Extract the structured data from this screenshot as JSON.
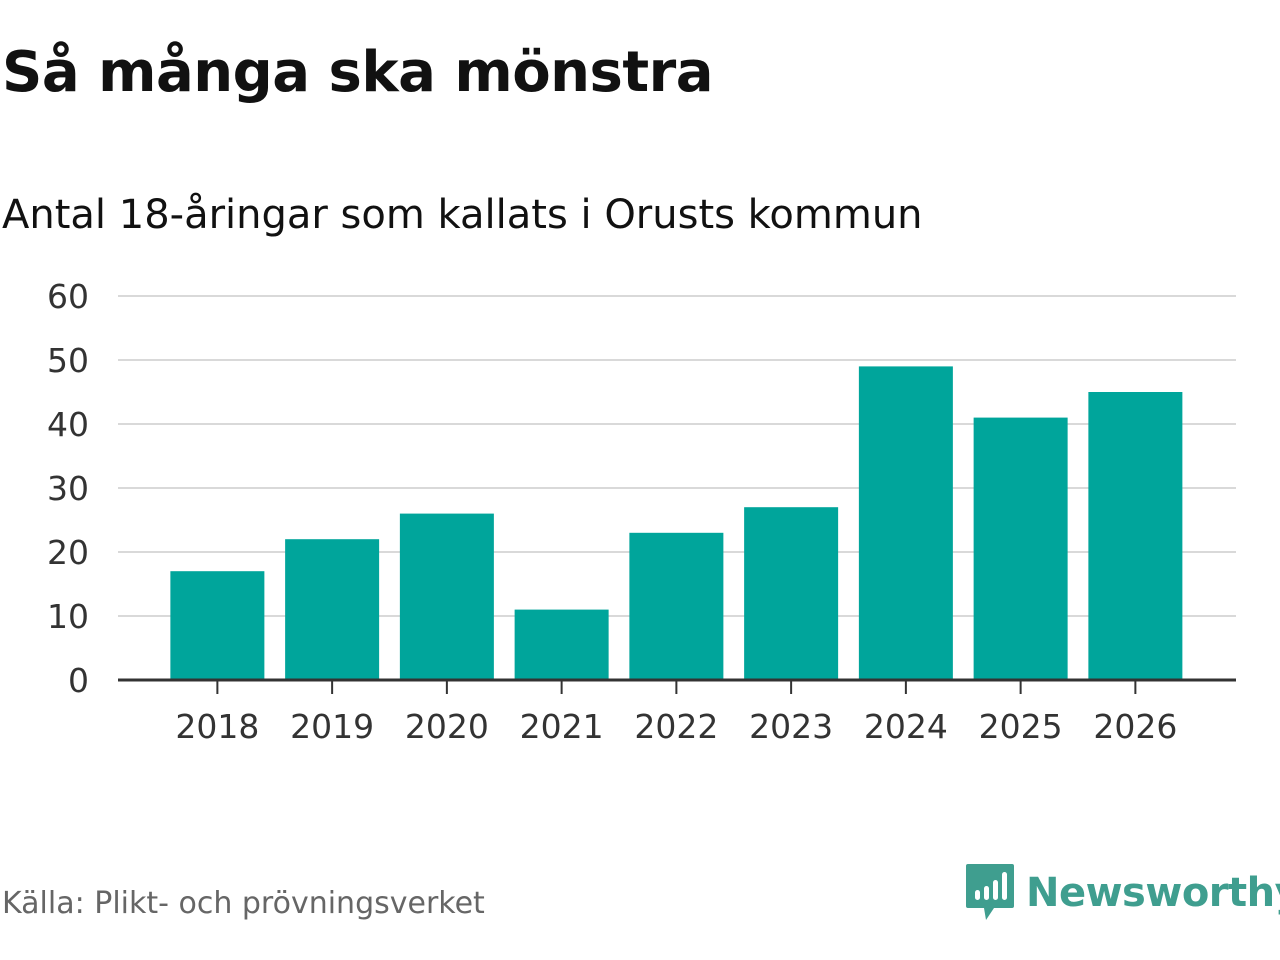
{
  "header": {
    "title": "Så många ska mönstra",
    "subtitle": "Antal 18-åringar som kallats i Orusts kommun"
  },
  "footer": {
    "source": "Källa: Plikt- och prövningsverket",
    "brand": "Newsworthy"
  },
  "colors": {
    "bar": "#00a59b",
    "grid": "#d9d9d9",
    "axis": "#333333",
    "brand": "#3f9e8f"
  },
  "chart_data": {
    "type": "bar",
    "categories": [
      "2018",
      "2019",
      "2020",
      "2021",
      "2022",
      "2023",
      "2024",
      "2025",
      "2026"
    ],
    "values": [
      17,
      22,
      26,
      11,
      23,
      27,
      49,
      41,
      45
    ],
    "ylim": [
      0,
      60
    ],
    "yticks": [
      0,
      10,
      20,
      30,
      40,
      50,
      60
    ],
    "grid": true,
    "legend": "none"
  }
}
